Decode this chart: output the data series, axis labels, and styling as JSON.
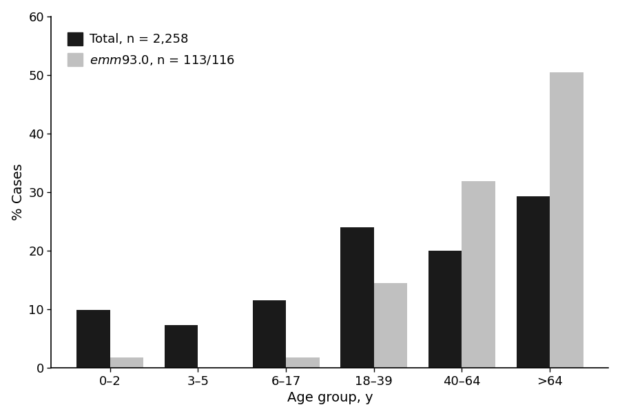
{
  "categories": [
    "0–2",
    "3–5",
    "6–17",
    "18–39",
    "40–64",
    ">64"
  ],
  "total_values": [
    9.9,
    7.3,
    11.5,
    24.0,
    20.0,
    29.3
  ],
  "emm_values": [
    1.8,
    0.0,
    1.8,
    14.5,
    31.9,
    50.4
  ],
  "total_color": "#1a1a1a",
  "emm_color": "#c0c0c0",
  "ylabel": "% Cases",
  "xlabel": "Age group, y",
  "ylim": [
    0,
    60
  ],
  "yticks": [
    0,
    10,
    20,
    30,
    40,
    50,
    60
  ],
  "bar_width": 0.38,
  "figsize": [
    9.0,
    6.04
  ],
  "dpi": 100
}
